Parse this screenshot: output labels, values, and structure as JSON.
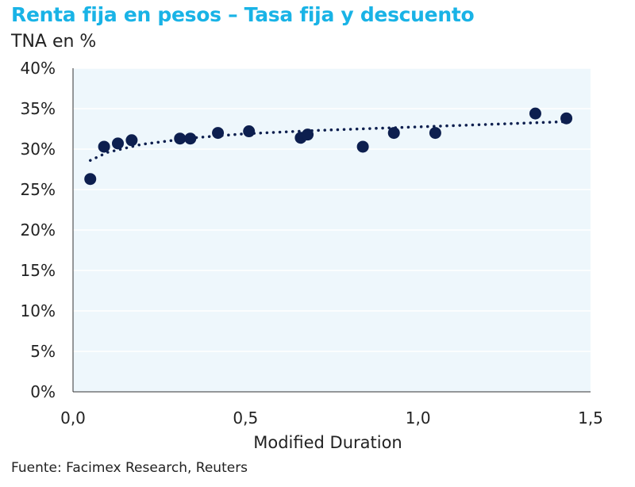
{
  "header": {
    "title": "Renta fija en pesos – Tasa fija y descuento",
    "subtitle": "TNA en %"
  },
  "footer": {
    "source": "Fuente: Facimex Research, Reuters"
  },
  "colors": {
    "title": "#19b3e6",
    "plot_bg": "#eef7fc",
    "marker": "#0d1f4f",
    "grid": "#ffffff"
  },
  "chart_data": {
    "type": "scatter",
    "title": "Renta fija en pesos – Tasa fija y descuento",
    "ylabel": "TNA en %",
    "xlabel": "Modified Duration",
    "xlim": [
      0,
      1.5
    ],
    "ylim": [
      0,
      40
    ],
    "x_ticks": [
      0,
      0.5,
      1.0,
      1.5
    ],
    "x_tick_labels": [
      "0,0",
      "0,5",
      "1,0",
      "1,5"
    ],
    "y_ticks": [
      0,
      5,
      10,
      15,
      20,
      25,
      30,
      35,
      40
    ],
    "y_tick_labels": [
      "0%",
      "5%",
      "10%",
      "15%",
      "20%",
      "25%",
      "30%",
      "35%",
      "40%"
    ],
    "grid": true,
    "series": [
      {
        "type": "scatter",
        "points": [
          {
            "x": 0.05,
            "y": 26.3
          },
          {
            "x": 0.09,
            "y": 30.3
          },
          {
            "x": 0.13,
            "y": 30.7
          },
          {
            "x": 0.17,
            "y": 31.1
          },
          {
            "x": 0.31,
            "y": 31.3
          },
          {
            "x": 0.34,
            "y": 31.3
          },
          {
            "x": 0.42,
            "y": 32.0
          },
          {
            "x": 0.51,
            "y": 32.2
          },
          {
            "x": 0.66,
            "y": 31.4
          },
          {
            "x": 0.68,
            "y": 31.8
          },
          {
            "x": 0.84,
            "y": 30.3
          },
          {
            "x": 0.93,
            "y": 32.0
          },
          {
            "x": 1.05,
            "y": 32.0
          },
          {
            "x": 1.34,
            "y": 34.4
          },
          {
            "x": 1.43,
            "y": 33.8
          }
        ]
      }
    ],
    "trendline": {
      "style": "dotted",
      "points": [
        {
          "x": 0.05,
          "y": 28.6
        },
        {
          "x": 0.1,
          "y": 29.6
        },
        {
          "x": 0.2,
          "y": 30.6
        },
        {
          "x": 0.35,
          "y": 31.4
        },
        {
          "x": 0.5,
          "y": 31.9
        },
        {
          "x": 0.7,
          "y": 32.3
        },
        {
          "x": 0.9,
          "y": 32.6
        },
        {
          "x": 1.1,
          "y": 32.9
        },
        {
          "x": 1.3,
          "y": 33.2
        },
        {
          "x": 1.43,
          "y": 33.4
        }
      ]
    }
  }
}
